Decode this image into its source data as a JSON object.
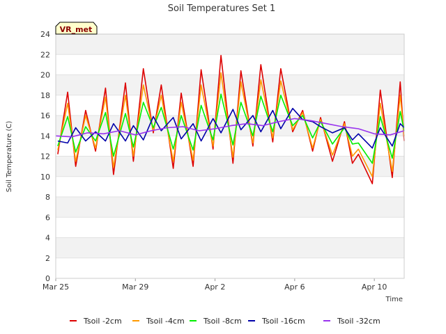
{
  "chart_data": {
    "type": "line",
    "title": "Soil Temperatures Set 1",
    "xlabel": "Time",
    "ylabel": "Soil Temperature (C)",
    "badge": "VR_met",
    "xlim": [
      0,
      17.5
    ],
    "ylim": [
      0,
      24
    ],
    "yticks": [
      0,
      2,
      4,
      6,
      8,
      10,
      12,
      14,
      16,
      18,
      20,
      22,
      24
    ],
    "xticks": [
      {
        "x": 0,
        "label": "Mar 25"
      },
      {
        "x": 4,
        "label": "Mar 29"
      },
      {
        "x": 8,
        "label": "Apr 2"
      },
      {
        "x": 12,
        "label": "Apr 6"
      },
      {
        "x": 16,
        "label": "Apr 10"
      }
    ],
    "grid": "horizontal bands",
    "legend_position": "bottom",
    "series": [
      {
        "name": "Tsoil -2cm",
        "color": "#dd0000",
        "x": [
          0.1,
          0.6,
          1.0,
          1.5,
          2.0,
          2.5,
          2.9,
          3.5,
          3.9,
          4.4,
          4.9,
          5.3,
          5.9,
          6.3,
          6.9,
          7.3,
          7.9,
          8.3,
          8.9,
          9.3,
          9.9,
          10.3,
          10.9,
          11.3,
          11.9,
          12.4,
          12.9,
          13.3,
          13.9,
          14.5,
          14.9,
          15.2,
          15.9,
          16.3,
          16.9,
          17.3,
          17.5
        ],
        "y": [
          12.2,
          18.3,
          11.0,
          16.5,
          12.5,
          18.7,
          10.2,
          19.2,
          11.5,
          20.6,
          14.3,
          19.0,
          10.8,
          18.2,
          11.0,
          20.5,
          12.7,
          21.9,
          11.3,
          20.4,
          13.0,
          21.0,
          13.4,
          20.6,
          14.4,
          16.5,
          12.5,
          15.8,
          11.5,
          15.4,
          11.3,
          12.2,
          9.3,
          18.5,
          9.9,
          19.3,
          13.5
        ]
      },
      {
        "name": "Tsoil -4cm",
        "color": "#ff9900",
        "x": [
          0.1,
          0.6,
          1.0,
          1.5,
          2.0,
          2.5,
          2.9,
          3.5,
          3.9,
          4.4,
          4.9,
          5.3,
          5.9,
          6.3,
          6.9,
          7.3,
          7.9,
          8.3,
          8.9,
          9.3,
          9.9,
          10.3,
          10.9,
          11.3,
          11.9,
          12.4,
          12.9,
          13.3,
          13.9,
          14.5,
          14.9,
          15.2,
          15.9,
          16.3,
          16.9,
          17.3,
          17.5
        ],
        "y": [
          12.6,
          17.2,
          11.5,
          16.0,
          12.8,
          17.8,
          10.9,
          18.0,
          12.0,
          19.0,
          14.5,
          18.0,
          11.5,
          17.3,
          11.6,
          19.0,
          13.0,
          20.2,
          11.9,
          19.3,
          13.3,
          19.5,
          13.8,
          19.4,
          14.6,
          16.3,
          12.8,
          15.6,
          12.1,
          15.2,
          12.0,
          12.7,
          10.0,
          17.2,
          10.5,
          18.0,
          14.0
        ]
      },
      {
        "name": "Tsoil -8cm",
        "color": "#00ee00",
        "x": [
          0.1,
          0.6,
          1.0,
          1.5,
          2.0,
          2.5,
          2.9,
          3.5,
          3.9,
          4.4,
          4.9,
          5.3,
          5.9,
          6.3,
          6.9,
          7.3,
          7.9,
          8.3,
          8.9,
          9.3,
          9.9,
          10.3,
          10.9,
          11.3,
          11.9,
          12.4,
          12.9,
          13.3,
          13.9,
          14.5,
          14.9,
          15.2,
          15.9,
          16.3,
          16.9,
          17.3,
          17.5
        ],
        "y": [
          13.0,
          15.9,
          12.4,
          14.9,
          13.5,
          16.3,
          12.0,
          16.2,
          12.9,
          17.3,
          14.8,
          16.8,
          12.7,
          16.0,
          12.6,
          17.0,
          13.6,
          18.1,
          13.1,
          17.3,
          14.0,
          17.9,
          14.4,
          18.0,
          15.0,
          16.0,
          13.8,
          15.4,
          13.2,
          14.8,
          13.2,
          13.3,
          11.3,
          15.9,
          11.8,
          16.4,
          14.5
        ]
      },
      {
        "name": "Tsoil -16cm",
        "color": "#0000aa",
        "x": [
          0.1,
          0.6,
          1.0,
          1.5,
          2.0,
          2.5,
          2.9,
          3.5,
          3.9,
          4.4,
          4.9,
          5.3,
          5.9,
          6.3,
          6.9,
          7.3,
          7.9,
          8.3,
          8.9,
          9.3,
          9.9,
          10.3,
          10.9,
          11.3,
          11.9,
          12.4,
          12.9,
          13.3,
          13.9,
          14.5,
          14.9,
          15.2,
          15.9,
          16.3,
          16.9,
          17.3,
          17.5
        ],
        "y": [
          13.5,
          13.3,
          14.8,
          13.5,
          14.4,
          13.5,
          15.2,
          13.5,
          15.0,
          13.6,
          15.9,
          14.5,
          15.8,
          13.7,
          15.2,
          13.5,
          15.7,
          14.3,
          16.6,
          14.6,
          16.0,
          14.4,
          16.5,
          14.7,
          16.7,
          15.6,
          15.4,
          14.9,
          14.3,
          14.8,
          13.6,
          14.2,
          12.8,
          14.8,
          13.0,
          15.2,
          14.8
        ]
      },
      {
        "name": "Tsoil -32cm",
        "color": "#9933ee",
        "x": [
          0,
          0.8,
          1.6,
          2.4,
          3.2,
          4.0,
          4.8,
          5.6,
          6.4,
          7.2,
          8.0,
          8.8,
          9.6,
          10.4,
          11.2,
          12.0,
          12.8,
          13.6,
          14.4,
          15.2,
          16.0,
          16.8,
          17.5
        ],
        "y": [
          14.0,
          13.9,
          14.3,
          14.2,
          14.5,
          14.1,
          14.5,
          14.8,
          14.9,
          14.5,
          14.7,
          15.0,
          15.2,
          15.0,
          15.4,
          15.7,
          15.5,
          15.2,
          14.9,
          14.7,
          14.2,
          14.1,
          14.5
        ]
      }
    ]
  }
}
